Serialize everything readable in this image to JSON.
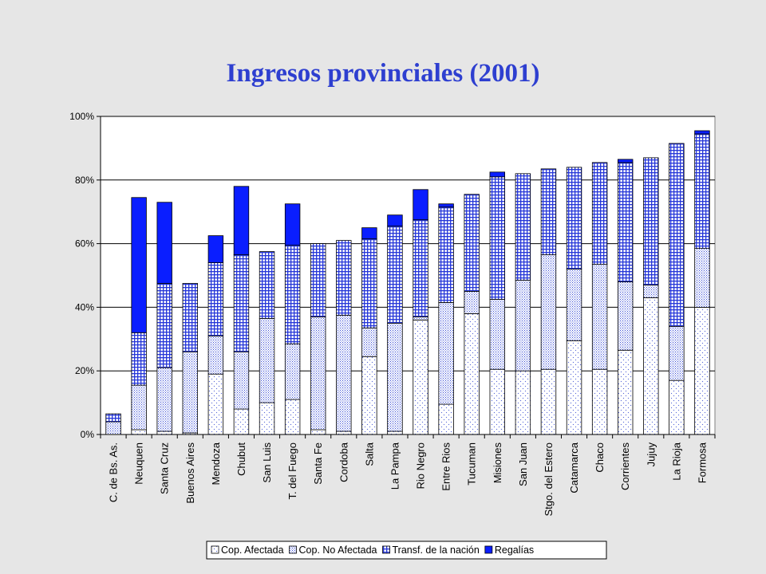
{
  "chart_data": {
    "type": "bar",
    "stacked": true,
    "title": "Ingresos provinciales (2001)",
    "xlabel": "",
    "ylabel": "",
    "ylim": [
      0,
      100
    ],
    "yticks": [
      "0%",
      "20%",
      "40%",
      "60%",
      "80%",
      "100%"
    ],
    "grid": true,
    "legend_position": "bottom",
    "categories": [
      "C. de Bs. As.",
      "Neuquen",
      "Santa Cruz",
      "Buenos Aires",
      "Mendoza",
      "Chubut",
      "San Luis",
      "T. del Fuego",
      "Santa Fe",
      "Cordoba",
      "Salta",
      "La Pampa",
      "Rio Negro",
      "Entre Rios",
      "Tucuman",
      "Misiones",
      "San Juan",
      "Stgo. del Estero",
      "Catamarca",
      "Chaco",
      "Corrientes",
      "Jujuy",
      "La Rioja",
      "Formosa"
    ],
    "series": [
      {
        "name": "Cop. Afectada",
        "pattern": "dots",
        "color": "#ffffff",
        "values": [
          0,
          1.5,
          1,
          0.5,
          19,
          8,
          10,
          11,
          1.5,
          1,
          24.5,
          1,
          36,
          9.5,
          38,
          20.5,
          20,
          20.5,
          29.5,
          20.5,
          26.5,
          43,
          17,
          40
        ]
      },
      {
        "name": "Cop. No Afectada",
        "pattern": "fine-dots",
        "color": "#ffffff",
        "values": [
          4,
          14,
          20,
          25.5,
          12,
          18,
          26.5,
          17.5,
          35.5,
          36.5,
          9,
          34,
          1,
          32,
          7,
          22,
          28.5,
          36,
          22.5,
          33,
          21.5,
          4,
          17,
          18.5
        ]
      },
      {
        "name": "Transf. de la nación",
        "pattern": "grid",
        "color": "#3344dd",
        "values": [
          2.5,
          16.5,
          26.5,
          21.5,
          23,
          30.5,
          21,
          31,
          23,
          23.5,
          28,
          30.5,
          30.5,
          30,
          30.5,
          38.5,
          33.5,
          27,
          32,
          32,
          37.5,
          40,
          57.5,
          36
        ]
      },
      {
        "name": "Regalías",
        "pattern": "solid",
        "color": "#0a1eff",
        "values": [
          0,
          42.5,
          25.5,
          0,
          8.5,
          21.5,
          0,
          13,
          0,
          0,
          3.5,
          3.5,
          9.5,
          1,
          0,
          1.5,
          0,
          0,
          0,
          0,
          1,
          0,
          0,
          1
        ]
      }
    ]
  }
}
